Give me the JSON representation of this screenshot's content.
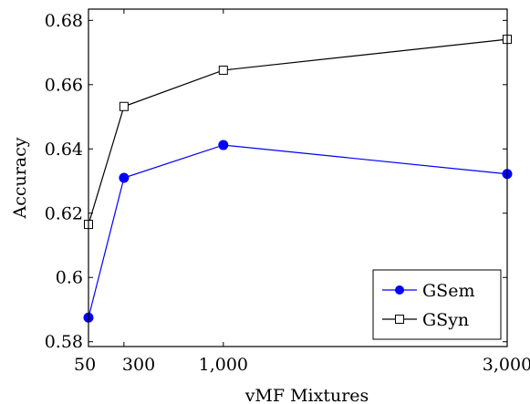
{
  "chart_data": {
    "type": "line",
    "title": "",
    "xlabel": "vMF Mixtures",
    "ylabel": "Accuracy",
    "x": [
      50,
      300,
      1000,
      3000
    ],
    "xticks": [
      {
        "value": 50,
        "label": "50"
      },
      {
        "value": 300,
        "label": "300"
      },
      {
        "value": 1000,
        "label": "1,000"
      },
      {
        "value": 3000,
        "label": "3,000"
      }
    ],
    "yticks": [
      {
        "value": 0.58,
        "label": "0.58"
      },
      {
        "value": 0.6,
        "label": "0.6"
      },
      {
        "value": 0.62,
        "label": "0.62"
      },
      {
        "value": 0.64,
        "label": "0.64"
      },
      {
        "value": 0.66,
        "label": "0.66"
      },
      {
        "value": 0.68,
        "label": "0.68"
      }
    ],
    "xlim": [
      50,
      3000
    ],
    "ylim": [
      0.5785,
      0.6835
    ],
    "grid": false,
    "legend_position": "bottom-right",
    "series": [
      {
        "name": "GSem",
        "values": [
          0.5875,
          0.631,
          0.6412,
          0.6322
        ],
        "color": "#0000ff",
        "marker": "filled-circle"
      },
      {
        "name": "GSyn",
        "values": [
          0.6165,
          0.6532,
          0.6645,
          0.6741
        ],
        "color": "#000000",
        "marker": "open-square"
      }
    ]
  }
}
